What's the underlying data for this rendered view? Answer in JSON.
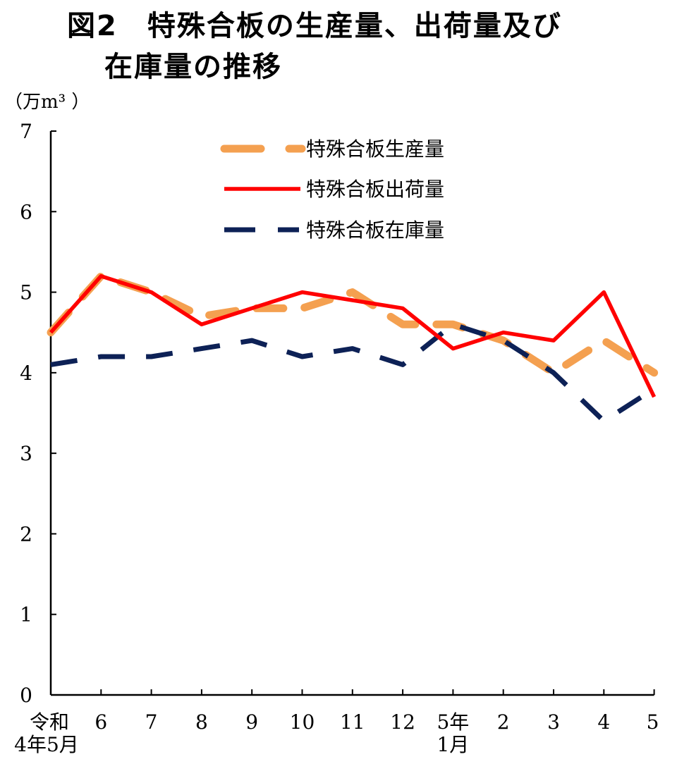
{
  "header": {
    "title_line1": "図2　特殊合板の生産量、出荷量及び",
    "title_line2": "在庫量の推移",
    "unit": "（万m³ ）"
  },
  "chart_data": {
    "type": "line",
    "title": "図2　特殊合板の生産量、出荷量及び在庫量の推移",
    "ylabel": "（万m³ ）",
    "ylim": [
      0,
      7
    ],
    "yticks": [
      "0",
      "1",
      "2",
      "3",
      "4",
      "5",
      "6",
      "7"
    ],
    "categories": [
      "令和\n4年5月",
      "6",
      "7",
      "8",
      "9",
      "10",
      "11",
      "12",
      "5年\n1月",
      "2",
      "3",
      "4",
      "5"
    ],
    "series": [
      {
        "name": "特殊合板生産量",
        "color": "#F4A050",
        "style": "long-dash",
        "values": [
          4.5,
          5.2,
          5.0,
          4.7,
          4.8,
          4.8,
          5.0,
          4.6,
          4.6,
          4.4,
          4.0,
          4.4,
          4.0
        ]
      },
      {
        "name": "特殊合板出荷量",
        "color": "#FF0000",
        "style": "solid",
        "values": [
          4.5,
          5.2,
          5.0,
          4.6,
          4.8,
          5.0,
          4.9,
          4.8,
          4.3,
          4.5,
          4.4,
          5.0,
          3.7
        ]
      },
      {
        "name": "特殊合板在庫量",
        "color": "#0D2156",
        "style": "dash",
        "values": [
          4.1,
          4.2,
          4.2,
          4.3,
          4.4,
          4.2,
          4.3,
          4.1,
          4.6,
          4.4,
          4.0,
          3.4,
          3.8
        ]
      }
    ],
    "grid": false,
    "legend_position": "top-center"
  }
}
